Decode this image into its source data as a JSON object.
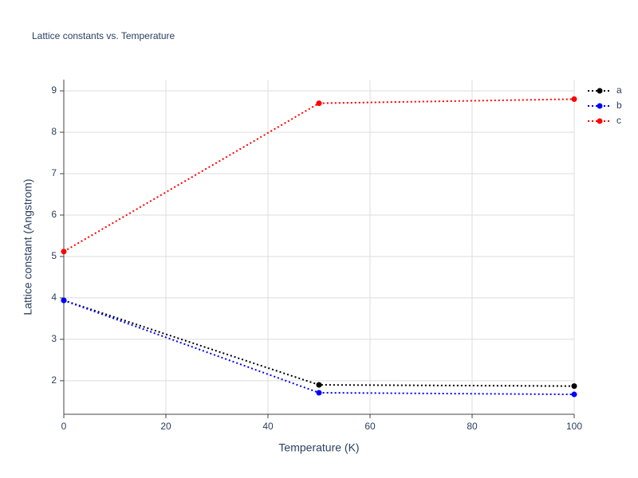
{
  "chart_data": {
    "type": "line",
    "title": "Lattice constants vs. Temperature",
    "xlabel": "Temperature (K)",
    "ylabel": "Lattice constant (Angstrom)",
    "x": [
      0,
      50,
      100
    ],
    "series": [
      {
        "name": "a",
        "color": "#000000",
        "values": [
          3.94,
          1.9,
          1.87
        ]
      },
      {
        "name": "b",
        "color": "#0000ff",
        "values": [
          3.94,
          1.71,
          1.67
        ]
      },
      {
        "name": "c",
        "color": "#ff0000",
        "values": [
          5.12,
          8.7,
          8.8
        ]
      }
    ],
    "xlim": [
      0,
      100
    ],
    "xticks": [
      0,
      20,
      40,
      60,
      80,
      100
    ],
    "ylim": [
      1.19,
      9.27
    ],
    "yticks": [
      2,
      3,
      4,
      5,
      6,
      7,
      8,
      9
    ],
    "grid": true,
    "legend": "top-right"
  }
}
